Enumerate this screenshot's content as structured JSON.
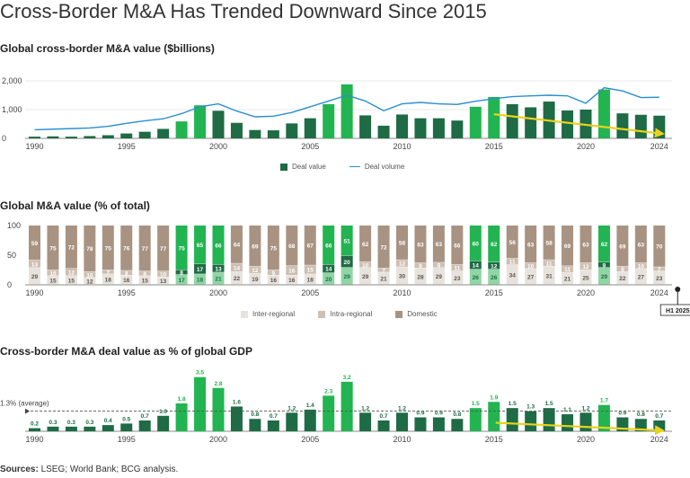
{
  "title": "Cross-Border M&A Has Trended Downward Since 2015",
  "sources_label": "Sources:",
  "sources_text": "LSEG; World Bank; BCG analysis.",
  "colors": {
    "dark_green": "#1e6b45",
    "bright_green": "#22b450",
    "light_green": "#8fd6a4",
    "pale_green": "#c4ead0",
    "volume_line": "#2a8fcf",
    "trend_arrow": "#e8d21d",
    "domestic": "#a89383",
    "intra": "#cdbfb2",
    "inter": "#e8e2dc",
    "average_line": "#555555"
  },
  "chart_data": [
    {
      "id": "value",
      "type": "bar",
      "title": "Global cross-border M&A value ($billions)",
      "years": [
        1990,
        1991,
        1992,
        1993,
        1994,
        1995,
        1996,
        1997,
        1998,
        1999,
        2000,
        2001,
        2002,
        2003,
        2004,
        2005,
        2006,
        2007,
        2008,
        2009,
        2010,
        2011,
        2012,
        2013,
        2014,
        2015,
        2016,
        2017,
        2018,
        2019,
        2020,
        2021,
        2022,
        2023,
        2024
      ],
      "values": [
        60,
        70,
        60,
        80,
        110,
        170,
        230,
        330,
        590,
        1150,
        960,
        540,
        290,
        280,
        520,
        700,
        1190,
        1880,
        800,
        440,
        830,
        700,
        700,
        620,
        1100,
        1440,
        1190,
        1080,
        1280,
        970,
        1000,
        1700,
        870,
        820,
        790
      ],
      "line_values": [
        300,
        320,
        340,
        360,
        420,
        520,
        610,
        680,
        860,
        1100,
        1200,
        950,
        750,
        770,
        900,
        1100,
        1300,
        1500,
        1300,
        960,
        1200,
        1250,
        1200,
        1180,
        1290,
        1380,
        1450,
        1480,
        1500,
        1480,
        1220,
        1760,
        1650,
        1420,
        1430
      ],
      "highlight_years": [
        1998,
        1999,
        2006,
        2007,
        2014,
        2015,
        2021
      ],
      "ylim": [
        0,
        2000
      ],
      "yticks": [
        "0",
        "1,000",
        "2,000"
      ],
      "yticks_values": [
        0,
        1000,
        2000
      ],
      "xticks": [
        "1990",
        "1995",
        "2000",
        "2005",
        "2010",
        "2015",
        "2020",
        "2024"
      ],
      "legend": [
        "Deal value",
        "Deal volume"
      ],
      "trend": {
        "from_year": 2015,
        "to_year": 2024,
        "from_value": 840,
        "to_value": 160
      }
    },
    {
      "id": "pct",
      "type": "bar",
      "stacked": true,
      "title": "Global M&A value (% of total)",
      "years": [
        1990,
        1991,
        1992,
        1993,
        1994,
        1995,
        1996,
        1997,
        1998,
        1999,
        2000,
        2001,
        2002,
        2003,
        2004,
        2005,
        2006,
        2007,
        2008,
        2009,
        2010,
        2011,
        2012,
        2013,
        2014,
        2015,
        2016,
        2017,
        2018,
        2019,
        2020,
        2021,
        2022,
        2023,
        2024
      ],
      "series": [
        {
          "name": "Inter-regional",
          "values": [
            29,
            15,
            15,
            12,
            18,
            16,
            15,
            13,
            17,
            18,
            21,
            22,
            19,
            16,
            16,
            18,
            20,
            29,
            29,
            21,
            30,
            28,
            29,
            23,
            26,
            26,
            34,
            27,
            31,
            21,
            25,
            29,
            22,
            27,
            23
          ]
        },
        {
          "name": "Intra-regional",
          "values": [
            13,
            10,
            12,
            10,
            7,
            8,
            8,
            10,
            8,
            17,
            13,
            14,
            12,
            9,
            16,
            15,
            14,
            20,
            10,
            7,
            12,
            9,
            9,
            11,
            14,
            12,
            11,
            10,
            11,
            11,
            12,
            9,
            9,
            10,
            7
          ]
        },
        {
          "name": "Domestic",
          "values": [
            59,
            75,
            72,
            78,
            75,
            76,
            77,
            77,
            75,
            65,
            66,
            64,
            69,
            75,
            68,
            67,
            66,
            51,
            62,
            72,
            58,
            63,
            63,
            66,
            60,
            62,
            56,
            63,
            58,
            69,
            63,
            62,
            69,
            63,
            70
          ]
        }
      ],
      "highlight_years": [
        1998,
        1999,
        2000,
        2006,
        2007,
        2014,
        2015,
        2021
      ],
      "ylim": [
        0,
        100
      ],
      "yticks": [
        "0",
        "50",
        "100"
      ],
      "yticks_values": [
        0,
        50,
        100
      ],
      "xticks": [
        "1990",
        "1995",
        "2000",
        "2005",
        "2010",
        "2015",
        "2020",
        "2024"
      ],
      "h1_label": "H1 2025"
    },
    {
      "id": "gdp",
      "type": "bar",
      "title": "Cross-border M&A deal value as % of global GDP",
      "years": [
        1990,
        1991,
        1992,
        1993,
        1994,
        1995,
        1996,
        1997,
        1998,
        1999,
        2000,
        2001,
        2002,
        2003,
        2004,
        2005,
        2006,
        2007,
        2008,
        2009,
        2010,
        2011,
        2012,
        2013,
        2014,
        2015,
        2016,
        2017,
        2018,
        2019,
        2020,
        2021,
        2022,
        2023,
        2024
      ],
      "values": [
        0.2,
        0.3,
        0.3,
        0.3,
        0.4,
        0.5,
        0.7,
        1.0,
        1.8,
        3.5,
        2.8,
        1.6,
        0.8,
        0.7,
        1.2,
        1.4,
        2.3,
        3.2,
        1.2,
        0.7,
        1.2,
        0.9,
        0.9,
        0.8,
        1.5,
        1.9,
        1.5,
        1.3,
        1.5,
        1.1,
        1.2,
        1.7,
        0.9,
        0.8,
        0.7
      ],
      "labels": [
        "0.2",
        "0.3",
        "0.3",
        "0.3",
        "0.4",
        "0.5",
        "0.7",
        "1.0",
        "1.8",
        "3.5",
        "2.8",
        "1.6",
        "0.8",
        "0.7",
        "1.2",
        "1.4",
        "2.3",
        "3.2",
        "1.2",
        "0.7",
        "1.2",
        "0.9",
        "0.9",
        "0.8",
        "1.5",
        "1.9",
        "1.5",
        "1.3",
        "1.5",
        "1.1",
        "1.2",
        "1.7",
        "0.9",
        "0.8",
        "0.7"
      ],
      "highlight_years": [
        1998,
        1999,
        2000,
        2006,
        2007,
        2014,
        2015,
        2021
      ],
      "average": 1.3,
      "average_label": "1.3% (average)",
      "ylim": [
        0,
        3.6
      ],
      "xticks": [
        "1990",
        "1995",
        "2000",
        "2005",
        "2010",
        "2015",
        "2020",
        "2024"
      ],
      "trend": {
        "from_year": 2015,
        "to_year": 2024,
        "from_value": 0.55,
        "to_value": 0.05
      }
    }
  ]
}
